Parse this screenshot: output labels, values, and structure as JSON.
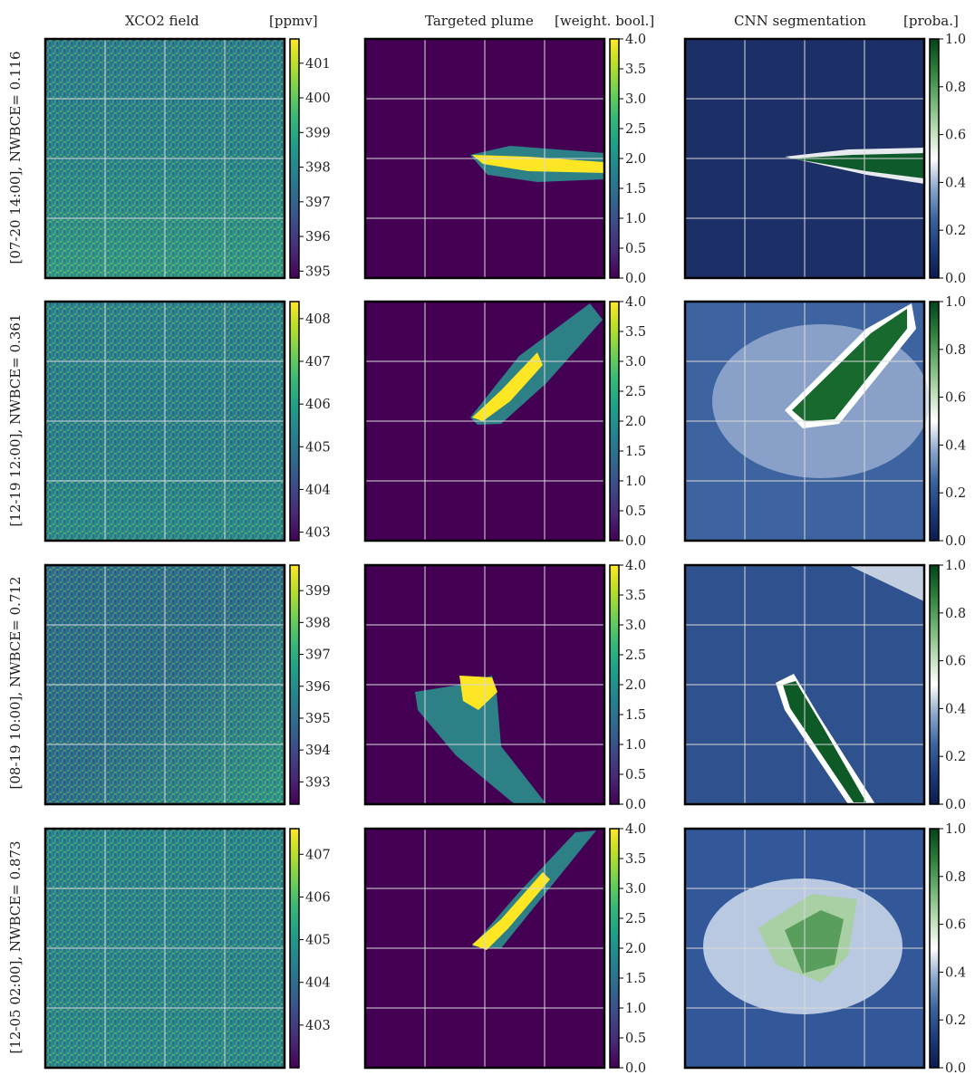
{
  "columns": [
    {
      "title": "XCO2 field",
      "unit": "[ppmv]",
      "cmap": "viridis"
    },
    {
      "title": "Targeted plume",
      "unit": "[weight. bool.]",
      "cmap": "viridis"
    },
    {
      "title": "CNN segmentation",
      "unit": "[proba.]",
      "cmap": "blues_greens"
    }
  ],
  "rows": [
    {
      "label": "[07-20 14:00], NWBCE= 0.116"
    },
    {
      "label": "[12-19 12:00], NWBCE= 0.361"
    },
    {
      "label": "[08-19 10:00], NWBCE= 0.712"
    },
    {
      "label": "[12-05 02:00], NWBCE= 0.873"
    }
  ],
  "chart_data": [
    {
      "type": "heatmap",
      "row": 0,
      "col": 0,
      "field": "xco2",
      "colorbar_range": [
        394.8,
        401.7
      ],
      "colorbar_ticks": [
        "401",
        "400",
        "399",
        "398",
        "397",
        "396",
        "395"
      ],
      "colorbar_values": [
        401,
        400,
        399,
        398,
        397,
        396,
        395
      ]
    },
    {
      "type": "heatmap",
      "row": 0,
      "col": 1,
      "field": "targeted_plume",
      "colorbar_range": [
        0,
        4
      ],
      "colorbar_ticks": [
        "4.0",
        "3.5",
        "3.0",
        "2.5",
        "2.0",
        "1.5",
        "1.0",
        "0.5",
        "0.0"
      ],
      "colorbar_values": [
        4,
        3.5,
        3,
        2.5,
        2,
        1.5,
        1,
        0.5,
        0
      ]
    },
    {
      "type": "heatmap",
      "row": 0,
      "col": 2,
      "field": "cnn_probability",
      "colorbar_range": [
        0,
        1
      ],
      "colorbar_ticks": [
        "1.0",
        "0.8",
        "0.6",
        "0.4",
        "0.2",
        "0.0"
      ],
      "colorbar_values": [
        1,
        0.8,
        0.6,
        0.4,
        0.2,
        0
      ]
    },
    {
      "type": "heatmap",
      "row": 1,
      "col": 0,
      "field": "xco2",
      "colorbar_range": [
        402.8,
        408.4
      ],
      "colorbar_ticks": [
        "408",
        "407",
        "406",
        "405",
        "404",
        "403"
      ],
      "colorbar_values": [
        408,
        407,
        406,
        405,
        404,
        403
      ]
    },
    {
      "type": "heatmap",
      "row": 1,
      "col": 1,
      "field": "targeted_plume",
      "colorbar_range": [
        0,
        4
      ],
      "colorbar_ticks": [
        "4.0",
        "3.5",
        "3.0",
        "2.5",
        "2.0",
        "1.5",
        "1.0",
        "0.5",
        "0.0"
      ],
      "colorbar_values": [
        4,
        3.5,
        3,
        2.5,
        2,
        1.5,
        1,
        0.5,
        0
      ]
    },
    {
      "type": "heatmap",
      "row": 1,
      "col": 2,
      "field": "cnn_probability",
      "colorbar_range": [
        0,
        1
      ],
      "colorbar_ticks": [
        "1.0",
        "0.8",
        "0.6",
        "0.4",
        "0.2",
        "0.0"
      ],
      "colorbar_values": [
        1,
        0.8,
        0.6,
        0.4,
        0.2,
        0
      ]
    },
    {
      "type": "heatmap",
      "row": 2,
      "col": 0,
      "field": "xco2",
      "colorbar_range": [
        392.3,
        399.8
      ],
      "colorbar_ticks": [
        "399",
        "398",
        "397",
        "396",
        "395",
        "394",
        "393"
      ],
      "colorbar_values": [
        399,
        398,
        397,
        396,
        395,
        394,
        393
      ]
    },
    {
      "type": "heatmap",
      "row": 2,
      "col": 1,
      "field": "targeted_plume",
      "colorbar_range": [
        0,
        4
      ],
      "colorbar_ticks": [
        "4.0",
        "3.5",
        "3.0",
        "2.5",
        "2.0",
        "1.5",
        "1.0",
        "0.5",
        "0.0"
      ],
      "colorbar_values": [
        4,
        3.5,
        3,
        2.5,
        2,
        1.5,
        1,
        0.5,
        0
      ]
    },
    {
      "type": "heatmap",
      "row": 2,
      "col": 2,
      "field": "cnn_probability",
      "colorbar_range": [
        0,
        1
      ],
      "colorbar_ticks": [
        "1.0",
        "0.8",
        "0.6",
        "0.4",
        "0.2",
        "0.0"
      ],
      "colorbar_values": [
        1,
        0.8,
        0.6,
        0.4,
        0.2,
        0
      ]
    },
    {
      "type": "heatmap",
      "row": 3,
      "col": 0,
      "field": "xco2",
      "colorbar_range": [
        402.0,
        407.6
      ],
      "colorbar_ticks": [
        "407",
        "406",
        "405",
        "404",
        "403"
      ],
      "colorbar_values": [
        407,
        406,
        405,
        404,
        403
      ]
    },
    {
      "type": "heatmap",
      "row": 3,
      "col": 1,
      "field": "targeted_plume",
      "colorbar_range": [
        0,
        4
      ],
      "colorbar_ticks": [
        "4.0",
        "3.5",
        "3.0",
        "2.5",
        "2.0",
        "1.5",
        "1.0",
        "0.5",
        "0.0"
      ],
      "colorbar_values": [
        4,
        3.5,
        3,
        2.5,
        2,
        1.5,
        1,
        0.5,
        0
      ]
    },
    {
      "type": "heatmap",
      "row": 3,
      "col": 2,
      "field": "cnn_probability",
      "colorbar_range": [
        0,
        1
      ],
      "colorbar_ticks": [
        "1.0",
        "0.8",
        "0.6",
        "0.4",
        "0.2",
        "0.0"
      ],
      "colorbar_values": [
        1,
        0.8,
        0.6,
        0.4,
        0.2,
        0
      ]
    }
  ],
  "colors": {
    "viridis": [
      "#440154",
      "#482878",
      "#3e4989",
      "#31688e",
      "#26828e",
      "#1f9e89",
      "#35b779",
      "#6ece58",
      "#b5de2b",
      "#fde725"
    ],
    "blues_greens": [
      "#0b1c4f",
      "#1d3b7a",
      "#3b64a0",
      "#8aa7cb",
      "#ffffff",
      "#b9dbb2",
      "#6cb16f",
      "#2c7d3a",
      "#00441b"
    ],
    "grid": "#d9d9d9",
    "frame": "#000000"
  },
  "grid": true
}
